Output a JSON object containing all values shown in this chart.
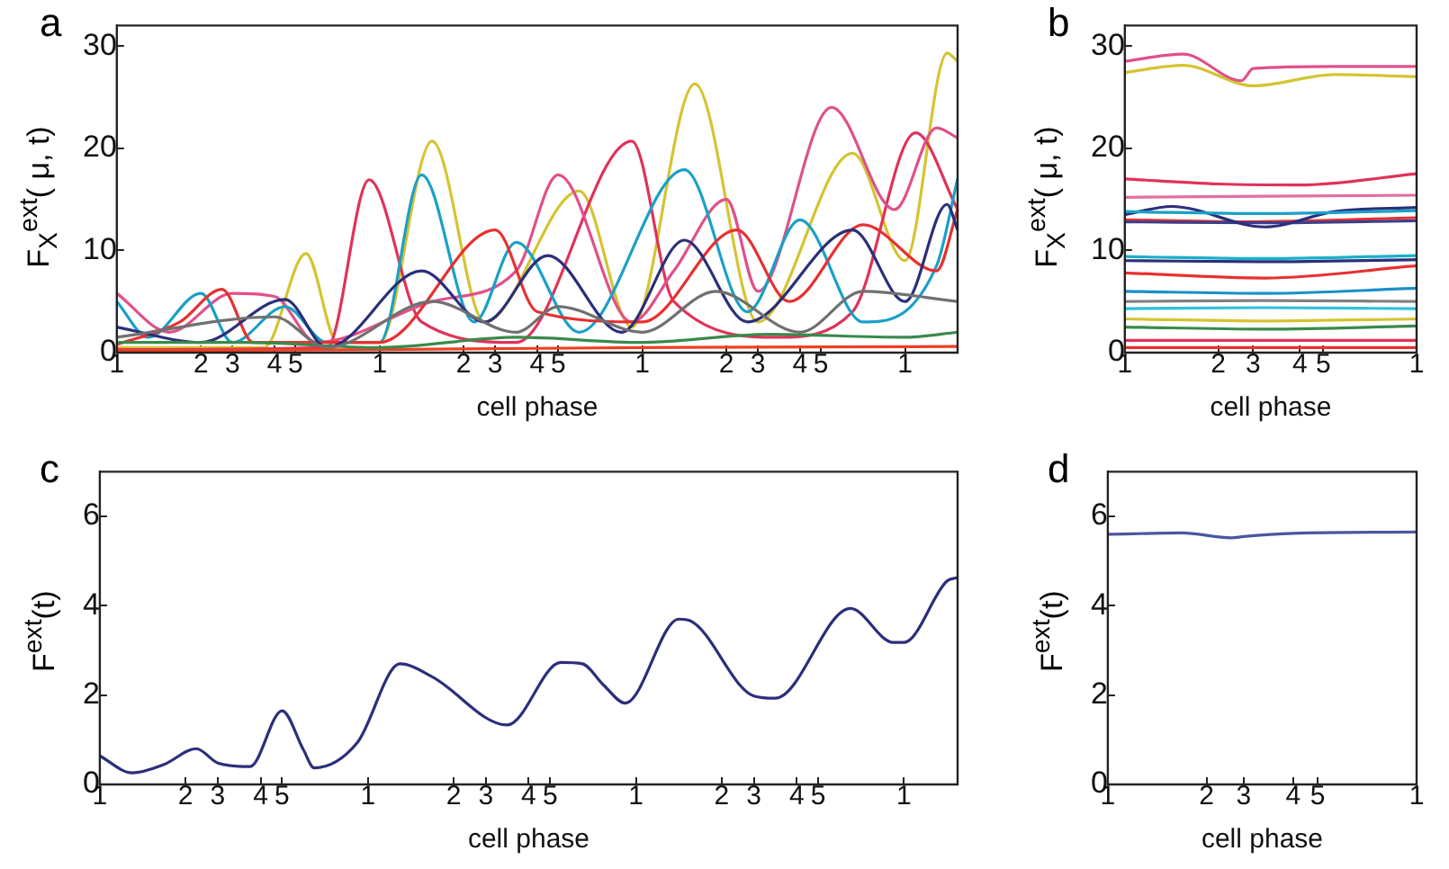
{
  "chart_data": [
    {
      "type": "line",
      "title": "a",
      "xlabel": "cell phase",
      "ylabel": "F$_{X}$$^{ext}$( μ, t)",
      "marker": "none",
      "ylim": [
        0,
        32
      ],
      "yticks": [
        0,
        10,
        20,
        30
      ],
      "categories": [
        "1",
        null,
        null,
        null,
        null,
        null,
        null,
        null,
        "2",
        null,
        null,
        "3",
        null,
        null,
        null,
        "4",
        null,
        "5",
        null,
        null,
        null,
        null,
        null,
        null,
        null,
        "1",
        null,
        null,
        null,
        null,
        null,
        null,
        null,
        "2",
        null,
        null,
        "3",
        null,
        null,
        null,
        "4",
        null,
        "5",
        null,
        null,
        null,
        null,
        null,
        null,
        null,
        "1",
        null,
        null,
        null,
        null,
        null,
        null,
        null,
        "2",
        null,
        null,
        "3",
        null,
        null,
        null,
        "4",
        null,
        "5",
        null,
        null,
        null,
        null,
        null,
        null,
        null,
        "1",
        null,
        null,
        null,
        null,
        null
      ],
      "series": [
        {
          "color": "#707070",
          "values": [
            1.5,
            null,
            null,
            null,
            null,
            null,
            null,
            null,
            null,
            null,
            null,
            null,
            null,
            null,
            null,
            3.5,
            null,
            null,
            null,
            null,
            0.5,
            null,
            null,
            null,
            null,
            null,
            null,
            null,
            null,
            null,
            5,
            null,
            null,
            null,
            null,
            null,
            null,
            null,
            2,
            null,
            null,
            null,
            4.5,
            null,
            null,
            null,
            null,
            null,
            null,
            null,
            2,
            null,
            null,
            null,
            null,
            null,
            null,
            6,
            null,
            null,
            null,
            null,
            null,
            null,
            null,
            2,
            null,
            null,
            null,
            null,
            null,
            6,
            null,
            null,
            null,
            null,
            null,
            null,
            null,
            null,
            5
          ]
        },
        {
          "color": "#3a8a4a",
          "values": [
            1,
            null,
            null,
            null,
            null,
            null,
            null,
            null,
            null,
            null,
            null,
            null,
            1,
            null,
            null,
            null,
            null,
            null,
            null,
            null,
            null,
            null,
            null,
            null,
            null,
            0.5,
            null,
            null,
            null,
            null,
            null,
            null,
            null,
            null,
            null,
            null,
            null,
            null,
            1.5,
            null,
            null,
            null,
            null,
            null,
            null,
            null,
            null,
            null,
            null,
            null,
            1,
            null,
            null,
            null,
            null,
            null,
            null,
            null,
            null,
            null,
            null,
            null,
            1.8,
            null,
            null,
            null,
            null,
            null,
            null,
            null,
            null,
            null,
            null,
            null,
            null,
            1.5,
            null,
            null,
            null,
            null,
            2
          ]
        },
        {
          "color": "#f04020",
          "values": [
            0.2,
            null,
            null,
            null,
            null,
            null,
            null,
            null,
            null,
            null,
            null,
            null,
            null,
            null,
            null,
            null,
            null,
            null,
            null,
            null,
            null,
            null,
            null,
            null,
            null,
            0.3,
            null,
            null,
            null,
            null,
            null,
            null,
            null,
            null,
            null,
            null,
            null,
            null,
            null,
            null,
            null,
            null,
            null,
            null,
            null,
            null,
            null,
            null,
            null,
            null,
            0.5,
            null,
            null,
            null,
            null,
            null,
            null,
            null,
            null,
            null,
            null,
            null,
            null,
            null,
            null,
            null,
            null,
            null,
            null,
            null,
            null,
            null,
            null,
            null,
            null,
            null,
            null,
            null,
            null,
            null,
            0.6
          ]
        },
        {
          "color": "#2b2f7a",
          "values": [
            2.5,
            null,
            null,
            null,
            null,
            null,
            null,
            null,
            1,
            null,
            null,
            null,
            null,
            null,
            null,
            null,
            5.2,
            null,
            null,
            null,
            0.5,
            null,
            null,
            null,
            null,
            null,
            null,
            null,
            null,
            8,
            null,
            null,
            null,
            null,
            null,
            3,
            null,
            null,
            null,
            null,
            null,
            9.5,
            null,
            null,
            null,
            null,
            null,
            null,
            2,
            null,
            null,
            null,
            null,
            null,
            11,
            null,
            null,
            null,
            null,
            null,
            3,
            null,
            null,
            null,
            null,
            null,
            null,
            null,
            null,
            null,
            12,
            null,
            null,
            null,
            null,
            5,
            null,
            null,
            null,
            14.5,
            12
          ]
        },
        {
          "color": "#e83030",
          "values": [
            0.8,
            null,
            null,
            null,
            null,
            null,
            3,
            null,
            null,
            null,
            6.2,
            null,
            null,
            1,
            null,
            null,
            null,
            null,
            null,
            null,
            null,
            null,
            null,
            null,
            null,
            1,
            null,
            null,
            null,
            null,
            null,
            null,
            null,
            null,
            null,
            null,
            12,
            null,
            null,
            null,
            4,
            null,
            null,
            null,
            null,
            null,
            null,
            null,
            null,
            null,
            3,
            null,
            null,
            null,
            null,
            null,
            null,
            null,
            null,
            12,
            null,
            null,
            null,
            null,
            5,
            null,
            null,
            null,
            null,
            null,
            null,
            12.5,
            null,
            null,
            null,
            null,
            null,
            null,
            8,
            null,
            14
          ]
        },
        {
          "color": "#1aa0c8",
          "values": [
            5,
            null,
            null,
            1.5,
            null,
            null,
            null,
            null,
            5.8,
            null,
            null,
            1,
            null,
            null,
            null,
            null,
            4.5,
            null,
            null,
            null,
            1,
            null,
            null,
            null,
            null,
            1,
            null,
            null,
            null,
            17.4,
            null,
            null,
            null,
            null,
            3,
            null,
            null,
            null,
            10.8,
            null,
            null,
            null,
            null,
            null,
            2,
            null,
            null,
            null,
            null,
            null,
            null,
            null,
            null,
            null,
            17.9,
            null,
            null,
            null,
            null,
            null,
            4,
            null,
            null,
            null,
            null,
            13,
            null,
            null,
            null,
            null,
            null,
            3,
            null,
            null,
            null,
            null,
            null,
            null,
            8.5,
            null,
            17
          ]
        },
        {
          "color": "#e0508a",
          "values": [
            5.8,
            null,
            null,
            null,
            null,
            2,
            null,
            null,
            null,
            null,
            null,
            5.8,
            null,
            null,
            null,
            5.5,
            null,
            null,
            null,
            1,
            null,
            null,
            null,
            null,
            null,
            null,
            null,
            null,
            null,
            null,
            5,
            null,
            null,
            null,
            null,
            null,
            null,
            null,
            8,
            null,
            null,
            null,
            17.4,
            null,
            null,
            null,
            null,
            null,
            null,
            3,
            null,
            null,
            null,
            8,
            null,
            null,
            null,
            null,
            15,
            null,
            null,
            6,
            null,
            null,
            null,
            null,
            null,
            null,
            24,
            null,
            null,
            null,
            null,
            null,
            14,
            null,
            null,
            null,
            22,
            null,
            21
          ]
        },
        {
          "color": "#e0325a",
          "values": [
            0.3,
            null,
            null,
            null,
            null,
            null,
            null,
            null,
            null,
            null,
            null,
            null,
            null,
            null,
            null,
            null,
            null,
            null,
            null,
            null,
            0.5,
            null,
            null,
            null,
            16.9,
            null,
            null,
            null,
            null,
            3,
            null,
            null,
            null,
            null,
            null,
            null,
            null,
            null,
            1,
            null,
            null,
            null,
            null,
            null,
            null,
            null,
            null,
            null,
            null,
            20.7,
            null,
            null,
            null,
            5,
            null,
            null,
            null,
            null,
            null,
            null,
            null,
            null,
            null,
            1.5,
            null,
            null,
            null,
            null,
            null,
            null,
            4,
            null,
            null,
            null,
            null,
            null,
            21.5,
            null,
            null,
            null,
            14
          ]
        },
        {
          "color": "#d4c431",
          "values": [
            0.5,
            null,
            null,
            null,
            null,
            null,
            null,
            null,
            null,
            null,
            null,
            null,
            null,
            null,
            0.5,
            null,
            null,
            null,
            9.7,
            null,
            null,
            1,
            null,
            null,
            null,
            1,
            null,
            null,
            null,
            null,
            20.7,
            null,
            null,
            null,
            null,
            3,
            null,
            null,
            null,
            null,
            null,
            null,
            null,
            null,
            15.8,
            null,
            null,
            null,
            null,
            2.5,
            null,
            null,
            null,
            null,
            null,
            26.3,
            null,
            null,
            null,
            null,
            null,
            3,
            null,
            null,
            null,
            null,
            null,
            null,
            null,
            null,
            19.5,
            null,
            null,
            null,
            null,
            9,
            null,
            null,
            null,
            29.3,
            28.5
          ]
        }
      ]
    },
    {
      "type": "line",
      "title": "b",
      "xlabel": "cell phase",
      "ylabel": "F$_{X}$$^{ext}$( μ, t)",
      "marker": "none",
      "ylim": [
        0,
        32
      ],
      "yticks": [
        0,
        10,
        20,
        30
      ],
      "categories": [
        "1",
        null,
        null,
        null,
        null,
        null,
        null,
        null,
        "2",
        null,
        null,
        "3",
        null,
        null,
        null,
        "4",
        null,
        "5",
        null,
        null,
        null,
        null,
        null,
        null,
        null,
        "1"
      ],
      "series": [
        {
          "color": "#e0508a",
          "values": [
            28.5,
            null,
            null,
            null,
            null,
            29.2,
            null,
            null,
            null,
            null,
            26.6,
            27.8,
            null,
            null,
            null,
            null,
            null,
            null,
            28,
            null,
            null,
            null,
            null,
            null,
            null,
            28
          ]
        },
        {
          "color": "#d4c431",
          "values": [
            27.4,
            null,
            null,
            null,
            null,
            28.1,
            null,
            null,
            null,
            null,
            null,
            26.1,
            null,
            null,
            null,
            null,
            null,
            null,
            27.2,
            null,
            null,
            null,
            null,
            null,
            null,
            27
          ]
        },
        {
          "color": "#e0325a",
          "values": [
            17,
            null,
            null,
            null,
            null,
            null,
            null,
            null,
            16.5,
            null,
            null,
            null,
            null,
            null,
            null,
            16.4,
            null,
            null,
            null,
            null,
            null,
            null,
            null,
            null,
            null,
            17.5
          ]
        },
        {
          "color": "#e070a0",
          "values": [
            15.2,
            null,
            null,
            null,
            null,
            null,
            null,
            null,
            null,
            null,
            null,
            null,
            15.3,
            null,
            null,
            null,
            null,
            null,
            null,
            null,
            null,
            null,
            null,
            null,
            null,
            15.4
          ]
        },
        {
          "color": "#1aa0c8",
          "values": [
            13.8,
            null,
            null,
            null,
            null,
            null,
            null,
            null,
            null,
            null,
            null,
            null,
            13.6,
            null,
            null,
            null,
            null,
            null,
            null,
            null,
            null,
            null,
            null,
            null,
            null,
            13.9
          ]
        },
        {
          "color": "#2b2f7a",
          "values": [
            13.5,
            null,
            null,
            null,
            14.3,
            null,
            null,
            null,
            null,
            null,
            null,
            null,
            12.3,
            null,
            null,
            null,
            null,
            null,
            13.8,
            null,
            null,
            null,
            null,
            null,
            null,
            14.2
          ]
        },
        {
          "color": "#3a3f8a",
          "values": [
            12.8,
            null,
            null,
            null,
            null,
            null,
            null,
            null,
            null,
            null,
            null,
            null,
            12.7,
            null,
            null,
            null,
            null,
            null,
            null,
            null,
            null,
            null,
            null,
            null,
            null,
            12.9
          ]
        },
        {
          "color": "#e83030",
          "values": [
            13,
            null,
            null,
            null,
            null,
            null,
            null,
            null,
            null,
            null,
            12.8,
            null,
            null,
            null,
            null,
            null,
            null,
            null,
            null,
            null,
            null,
            null,
            null,
            null,
            null,
            13.2
          ]
        },
        {
          "color": "#1ab0c8",
          "values": [
            9.4,
            null,
            null,
            null,
            null,
            null,
            null,
            null,
            null,
            null,
            null,
            null,
            9.2,
            null,
            null,
            null,
            null,
            null,
            null,
            null,
            null,
            null,
            null,
            null,
            null,
            9.5
          ]
        },
        {
          "color": "#2b2f7a",
          "values": [
            9,
            null,
            null,
            null,
            null,
            null,
            null,
            null,
            null,
            null,
            null,
            null,
            8.9,
            null,
            null,
            null,
            null,
            null,
            null,
            null,
            null,
            null,
            null,
            null,
            null,
            9.1
          ]
        },
        {
          "color": "#e83030",
          "values": [
            7.8,
            null,
            null,
            null,
            null,
            null,
            null,
            null,
            null,
            null,
            null,
            null,
            7.3,
            null,
            null,
            null,
            null,
            null,
            null,
            null,
            null,
            null,
            null,
            null,
            null,
            8.5
          ]
        },
        {
          "color": "#1a90c8",
          "values": [
            6,
            null,
            null,
            null,
            null,
            null,
            null,
            null,
            null,
            null,
            null,
            null,
            5.8,
            null,
            null,
            null,
            null,
            null,
            null,
            null,
            null,
            null,
            null,
            null,
            null,
            6.3
          ]
        },
        {
          "color": "#808080",
          "values": [
            5,
            null,
            null,
            null,
            null,
            null,
            null,
            null,
            null,
            null,
            null,
            null,
            5.1,
            null,
            null,
            null,
            null,
            null,
            null,
            null,
            null,
            null,
            null,
            null,
            null,
            5
          ]
        },
        {
          "color": "#30c0d8",
          "values": [
            4.3,
            null,
            null,
            null,
            null,
            null,
            null,
            null,
            null,
            null,
            null,
            null,
            4.4,
            null,
            null,
            null,
            null,
            null,
            null,
            null,
            null,
            null,
            null,
            null,
            null,
            4.3
          ]
        },
        {
          "color": "#d4c431",
          "values": [
            3.3,
            null,
            null,
            null,
            null,
            null,
            null,
            null,
            null,
            null,
            null,
            null,
            3.1,
            null,
            null,
            null,
            null,
            null,
            null,
            null,
            null,
            null,
            null,
            null,
            null,
            3.3
          ]
        },
        {
          "color": "#3a8a4a",
          "values": [
            2.5,
            null,
            null,
            null,
            null,
            null,
            null,
            null,
            null,
            null,
            null,
            null,
            2.3,
            null,
            null,
            null,
            null,
            null,
            null,
            null,
            null,
            null,
            null,
            null,
            null,
            2.6
          ]
        },
        {
          "color": "#e0325a",
          "values": [
            1.2,
            null,
            null,
            null,
            null,
            null,
            null,
            null,
            null,
            null,
            null,
            null,
            1.2,
            null,
            null,
            null,
            null,
            null,
            null,
            null,
            null,
            null,
            null,
            null,
            null,
            1.2
          ]
        },
        {
          "color": "#e83030",
          "values": [
            0.5,
            null,
            null,
            null,
            null,
            null,
            null,
            null,
            null,
            null,
            null,
            null,
            0.5,
            null,
            null,
            null,
            null,
            null,
            null,
            null,
            null,
            null,
            null,
            null,
            null,
            0.5
          ]
        }
      ]
    },
    {
      "type": "line",
      "title": "c",
      "xlabel": "cell phase",
      "ylabel": "F$^{ext}$(t)",
      "marker": "none",
      "ylim": [
        0,
        7
      ],
      "yticks": [
        0,
        2,
        4,
        6
      ],
      "categories": [
        "1",
        null,
        null,
        null,
        null,
        null,
        null,
        null,
        "2",
        null,
        null,
        "3",
        null,
        null,
        null,
        "4",
        null,
        "5",
        null,
        null,
        null,
        null,
        null,
        null,
        null,
        "1",
        null,
        null,
        null,
        null,
        null,
        null,
        null,
        "2",
        null,
        null,
        "3",
        null,
        null,
        null,
        "4",
        null,
        "5",
        null,
        null,
        null,
        null,
        null,
        null,
        null,
        "1",
        null,
        null,
        null,
        null,
        null,
        null,
        null,
        "2",
        null,
        null,
        "3",
        null,
        null,
        null,
        "4",
        null,
        "5",
        null,
        null,
        null,
        null,
        null,
        null,
        null,
        "1",
        null,
        null,
        null,
        null,
        null
      ],
      "series": [
        {
          "color": "#2b2f7a",
          "values": [
            0.64,
            null,
            null,
            0.26,
            null,
            null,
            0.45,
            null,
            null,
            0.8,
            null,
            0.48,
            null,
            null,
            0.4,
            null,
            null,
            1.65,
            null,
            0.77,
            0.37,
            null,
            null,
            null,
            0.93,
            null,
            null,
            null,
            2.7,
            null,
            null,
            2.41,
            null,
            null,
            null,
            null,
            null,
            null,
            1.33,
            null,
            null,
            null,
            null,
            2.73,
            null,
            2.7,
            null,
            2.22,
            null,
            1.82,
            null,
            null,
            null,
            null,
            3.7,
            3.67,
            null,
            null,
            null,
            null,
            null,
            1.98,
            null,
            1.93,
            null,
            null,
            null,
            null,
            null,
            null,
            3.94,
            null,
            null,
            null,
            3.18,
            3.18,
            null,
            null,
            null,
            4.55,
            4.63
          ]
        }
      ]
    },
    {
      "type": "line",
      "title": "d",
      "xlabel": "cell phase",
      "ylabel": "F$^{ext}$(t)",
      "marker": "none",
      "ylim": [
        0,
        7
      ],
      "yticks": [
        0,
        2,
        4,
        6
      ],
      "categories": [
        "1",
        null,
        null,
        null,
        null,
        null,
        null,
        null,
        "2",
        null,
        null,
        "3",
        null,
        null,
        null,
        "4",
        null,
        "5",
        null,
        null,
        null,
        null,
        null,
        null,
        null,
        "1"
      ],
      "series": [
        {
          "color": "#4a56a0",
          "values": [
            5.6,
            null,
            null,
            null,
            null,
            null,
            5.63,
            null,
            null,
            null,
            5.52,
            5.55,
            null,
            null,
            null,
            5.62,
            null,
            null,
            null,
            null,
            null,
            null,
            null,
            null,
            null,
            5.65
          ]
        }
      ]
    }
  ]
}
